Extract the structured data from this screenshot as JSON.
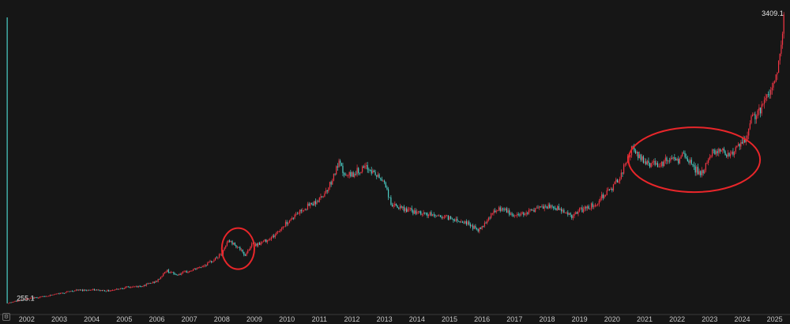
{
  "chart_data": {
    "type": "candlestick",
    "title": "",
    "xlabel": "",
    "ylabel": "",
    "x_range": [
      2001.3,
      2025.3
    ],
    "y_range": [
      255.1,
      3409.1
    ],
    "x_ticks": [
      "2002",
      "2003",
      "2004",
      "2005",
      "2006",
      "2007",
      "2008",
      "2009",
      "2010",
      "2011",
      "2012",
      "2013",
      "2014",
      "2015",
      "2016",
      "2017",
      "2018",
      "2019",
      "2020",
      "2021",
      "2022",
      "2023",
      "2024",
      "2025"
    ],
    "start_label": "255.1",
    "end_label": "3409.1",
    "grid": false,
    "up_color": "#f23645",
    "down_color": "#4dd0c8",
    "annotation_color": "#e8262a",
    "series": [
      {
        "x": [
          2001.4,
          2002.0,
          2002.5,
          2003.0,
          2003.5,
          2004.0,
          2004.5,
          2005.0,
          2005.5,
          2006.0,
          2006.3,
          2006.6,
          2007.0,
          2007.3,
          2007.6,
          2008.0,
          2008.2,
          2008.5,
          2008.7,
          2008.9,
          2009.2,
          2009.6,
          2010.0,
          2010.5,
          2011.0,
          2011.3,
          2011.6,
          2011.8,
          2012.0,
          2012.2,
          2012.5,
          2012.8,
          2013.0,
          2013.2,
          2013.5,
          2013.8,
          2014.0,
          2014.5,
          2015.0,
          2015.5,
          2015.9,
          2016.3,
          2016.6,
          2017.0,
          2017.5,
          2018.0,
          2018.4,
          2018.8,
          2019.0,
          2019.5,
          2019.8,
          2020.0,
          2020.3,
          2020.6,
          2020.9,
          2021.2,
          2021.5,
          2021.8,
          2022.0,
          2022.2,
          2022.5,
          2022.8,
          2023.0,
          2023.3,
          2023.6,
          2023.9,
          2024.1,
          2024.3,
          2024.6,
          2024.9,
          2025.0,
          2025.15,
          2025.28
        ],
        "y": [
          258,
          305,
          330,
          365,
          400,
          405,
          395,
          430,
          445,
          500,
          620,
          570,
          610,
          650,
          700,
          800,
          950,
          880,
          780,
          900,
          920,
          1000,
          1150,
          1300,
          1400,
          1550,
          1800,
          1650,
          1680,
          1720,
          1750,
          1650,
          1600,
          1350,
          1300,
          1280,
          1250,
          1230,
          1200,
          1150,
          1060,
          1250,
          1300,
          1220,
          1280,
          1320,
          1300,
          1210,
          1280,
          1350,
          1480,
          1520,
          1700,
          1950,
          1850,
          1790,
          1800,
          1850,
          1820,
          1900,
          1750,
          1680,
          1900,
          1950,
          1900,
          1980,
          2050,
          2300,
          2400,
          2650,
          2700,
          2950,
          3409
        ]
      }
    ]
  }
}
